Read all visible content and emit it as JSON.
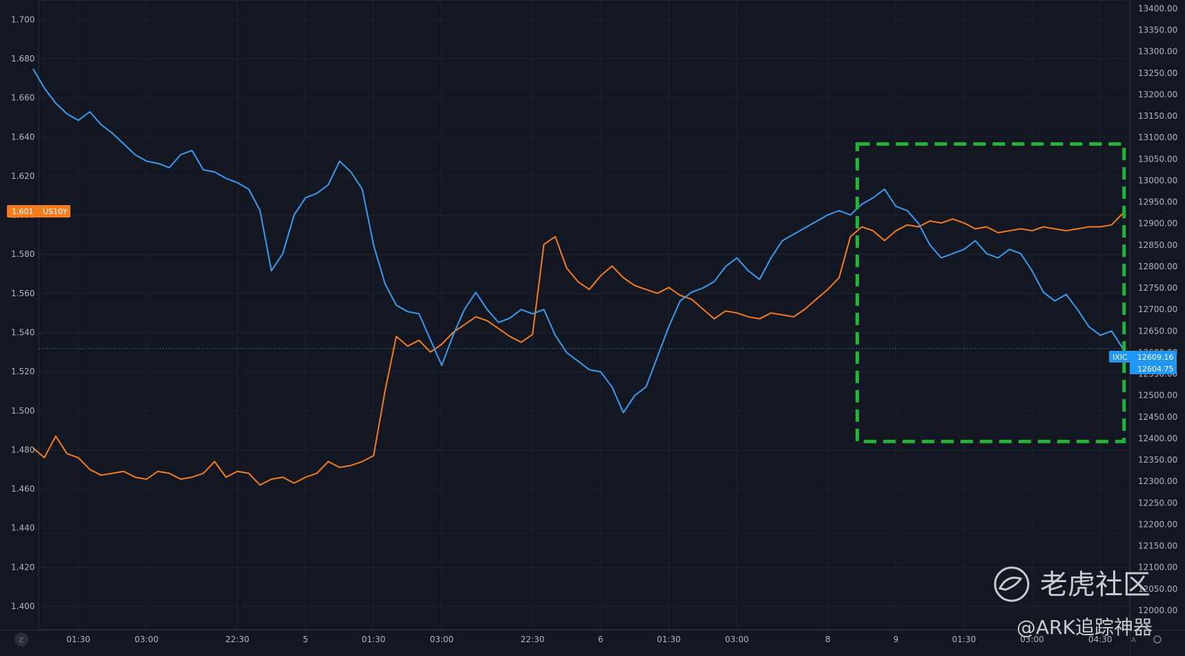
{
  "chart_data": {
    "type": "line",
    "left_axis": {
      "ylim": [
        1.388,
        1.71
      ],
      "ticks": [
        "1.700",
        "1.680",
        "1.660",
        "1.640",
        "1.620",
        "1.600",
        "1.580",
        "1.560",
        "1.540",
        "1.520",
        "1.500",
        "1.480",
        "1.460",
        "1.440",
        "1.420",
        "1.400"
      ]
    },
    "right_axis": {
      "ylim": [
        11955,
        13420
      ],
      "ticks": [
        "13400.00",
        "13350.00",
        "13300.00",
        "13250.00",
        "13200.00",
        "13150.00",
        "13100.00",
        "13050.00",
        "13000.00",
        "12950.00",
        "12900.00",
        "12850.00",
        "12800.00",
        "12750.00",
        "12700.00",
        "12650.00",
        "12600.00",
        "12550.00",
        "12500.00",
        "12450.00",
        "12400.00",
        "12350.00",
        "12300.00",
        "12250.00",
        "12200.00",
        "12150.00",
        "12100.00",
        "12050.00",
        "12000.00"
      ]
    },
    "x_axis": {
      "labels": [
        {
          "t": 4,
          "text": "01:30"
        },
        {
          "t": 10,
          "text": "03:00"
        },
        {
          "t": 18,
          "text": "22:30"
        },
        {
          "t": 24,
          "text": "5"
        },
        {
          "t": 30,
          "text": "01:30"
        },
        {
          "t": 36,
          "text": "03:00"
        },
        {
          "t": 44,
          "text": "22:30"
        },
        {
          "t": 50,
          "text": "6"
        },
        {
          "t": 56,
          "text": "01:30"
        },
        {
          "t": 62,
          "text": "03:00"
        },
        {
          "t": 70,
          "text": "8"
        },
        {
          "t": 76,
          "text": "9"
        },
        {
          "t": 82,
          "text": "01:30"
        },
        {
          "t": 88,
          "text": "03:00"
        },
        {
          "t": 94,
          "text": "04:30"
        }
      ],
      "range": [
        0.5,
        96.6
      ]
    },
    "series": [
      {
        "name": "US10Y",
        "axis": "left",
        "color": "#f57c1f",
        "last_value": "1.601",
        "points": [
          [
            0,
            1.481
          ],
          [
            1,
            1.476
          ],
          [
            2,
            1.487
          ],
          [
            3,
            1.478
          ],
          [
            4,
            1.476
          ],
          [
            5,
            1.47
          ],
          [
            6,
            1.467
          ],
          [
            7,
            1.468
          ],
          [
            8,
            1.469
          ],
          [
            9,
            1.466
          ],
          [
            10,
            1.465
          ],
          [
            11,
            1.469
          ],
          [
            12,
            1.468
          ],
          [
            13,
            1.465
          ],
          [
            14,
            1.466
          ],
          [
            15,
            1.468
          ],
          [
            16,
            1.474
          ],
          [
            17,
            1.466
          ],
          [
            18,
            1.469
          ],
          [
            19,
            1.468
          ],
          [
            20,
            1.462
          ],
          [
            21,
            1.465
          ],
          [
            22,
            1.466
          ],
          [
            23,
            1.463
          ],
          [
            24,
            1.466
          ],
          [
            25,
            1.468
          ],
          [
            26,
            1.474
          ],
          [
            27,
            1.471
          ],
          [
            28,
            1.472
          ],
          [
            29,
            1.474
          ],
          [
            30,
            1.477
          ],
          [
            31,
            1.51
          ],
          [
            32,
            1.538
          ],
          [
            33,
            1.533
          ],
          [
            34,
            1.536
          ],
          [
            35,
            1.53
          ],
          [
            36,
            1.534
          ],
          [
            37,
            1.54
          ],
          [
            38,
            1.544
          ],
          [
            39,
            1.548
          ],
          [
            40,
            1.546
          ],
          [
            41,
            1.542
          ],
          [
            42,
            1.538
          ],
          [
            43,
            1.535
          ],
          [
            44,
            1.539
          ],
          [
            45,
            1.585
          ],
          [
            46,
            1.589
          ],
          [
            47,
            1.573
          ],
          [
            48,
            1.566
          ],
          [
            49,
            1.562
          ],
          [
            50,
            1.569
          ],
          [
            51,
            1.574
          ],
          [
            52,
            1.568
          ],
          [
            53,
            1.564
          ],
          [
            54,
            1.562
          ],
          [
            55,
            1.56
          ],
          [
            56,
            1.563
          ],
          [
            57,
            1.559
          ],
          [
            58,
            1.557
          ],
          [
            59,
            1.552
          ],
          [
            60,
            1.547
          ],
          [
            61,
            1.551
          ],
          [
            62,
            1.55
          ],
          [
            63,
            1.548
          ],
          [
            64,
            1.547
          ],
          [
            65,
            1.55
          ],
          [
            66,
            1.549
          ],
          [
            67,
            1.548
          ],
          [
            68,
            1.552
          ],
          [
            69,
            1.557
          ],
          [
            70,
            1.562
          ],
          [
            71,
            1.568
          ],
          [
            72,
            1.589
          ],
          [
            73,
            1.594
          ],
          [
            74,
            1.592
          ],
          [
            75,
            1.587
          ],
          [
            76,
            1.592
          ],
          [
            77,
            1.595
          ],
          [
            78,
            1.594
          ],
          [
            79,
            1.597
          ],
          [
            80,
            1.596
          ],
          [
            81,
            1.598
          ],
          [
            82,
            1.596
          ],
          [
            83,
            1.593
          ],
          [
            84,
            1.594
          ],
          [
            85,
            1.591
          ],
          [
            86,
            1.592
          ],
          [
            87,
            1.593
          ],
          [
            88,
            1.592
          ],
          [
            89,
            1.594
          ],
          [
            90,
            1.593
          ],
          [
            91,
            1.592
          ],
          [
            92,
            1.593
          ],
          [
            93,
            1.594
          ],
          [
            94,
            1.594
          ],
          [
            95,
            1.595
          ],
          [
            96,
            1.601
          ]
        ]
      },
      {
        "name": "IXIC",
        "axis": "right",
        "color": "#3a9bf0",
        "last_value": "12609.16",
        "points": [
          [
            0,
            13260
          ],
          [
            1,
            13215
          ],
          [
            2,
            13180
          ],
          [
            3,
            13155
          ],
          [
            4,
            13140
          ],
          [
            5,
            13160
          ],
          [
            6,
            13130
          ],
          [
            7,
            13110
          ],
          [
            8,
            13085
          ],
          [
            9,
            13060
          ],
          [
            10,
            13045
          ],
          [
            11,
            13040
          ],
          [
            12,
            13030
          ],
          [
            13,
            13060
          ],
          [
            14,
            13070
          ],
          [
            15,
            13025
          ],
          [
            16,
            13020
          ],
          [
            17,
            13005
          ],
          [
            18,
            12995
          ],
          [
            19,
            12980
          ],
          [
            20,
            12930
          ],
          [
            21,
            12790
          ],
          [
            22,
            12830
          ],
          [
            23,
            12920
          ],
          [
            24,
            12960
          ],
          [
            25,
            12970
          ],
          [
            26,
            12990
          ],
          [
            27,
            13045
          ],
          [
            28,
            13020
          ],
          [
            29,
            12980
          ],
          [
            30,
            12850
          ],
          [
            31,
            12760
          ],
          [
            32,
            12710
          ],
          [
            33,
            12695
          ],
          [
            34,
            12690
          ],
          [
            35,
            12630
          ],
          [
            36,
            12570
          ],
          [
            37,
            12640
          ],
          [
            38,
            12700
          ],
          [
            39,
            12740
          ],
          [
            40,
            12700
          ],
          [
            41,
            12670
          ],
          [
            42,
            12680
          ],
          [
            43,
            12700
          ],
          [
            44,
            12690
          ],
          [
            45,
            12700
          ],
          [
            46,
            12640
          ],
          [
            47,
            12600
          ],
          [
            48,
            12580
          ],
          [
            49,
            12560
          ],
          [
            50,
            12555
          ],
          [
            51,
            12520
          ],
          [
            52,
            12460
          ],
          [
            53,
            12500
          ],
          [
            54,
            12520
          ],
          [
            55,
            12590
          ],
          [
            56,
            12660
          ],
          [
            57,
            12720
          ],
          [
            58,
            12740
          ],
          [
            59,
            12750
          ],
          [
            60,
            12765
          ],
          [
            61,
            12800
          ],
          [
            62,
            12820
          ],
          [
            63,
            12790
          ],
          [
            64,
            12770
          ],
          [
            65,
            12820
          ],
          [
            66,
            12860
          ],
          [
            67,
            12875
          ],
          [
            68,
            12890
          ],
          [
            69,
            12905
          ],
          [
            70,
            12920
          ],
          [
            71,
            12930
          ],
          [
            72,
            12920
          ],
          [
            73,
            12945
          ],
          [
            74,
            12960
          ],
          [
            75,
            12980
          ],
          [
            76,
            12940
          ],
          [
            77,
            12930
          ],
          [
            78,
            12900
          ],
          [
            79,
            12850
          ],
          [
            80,
            12820
          ],
          [
            81,
            12830
          ],
          [
            82,
            12840
          ],
          [
            83,
            12860
          ],
          [
            84,
            12830
          ],
          [
            85,
            12820
          ],
          [
            86,
            12840
          ],
          [
            87,
            12830
          ],
          [
            88,
            12790
          ],
          [
            89,
            12740
          ],
          [
            90,
            12720
          ],
          [
            91,
            12735
          ],
          [
            92,
            12700
          ],
          [
            93,
            12660
          ],
          [
            94,
            12640
          ],
          [
            95,
            12650
          ],
          [
            96,
            12609
          ]
        ]
      }
    ],
    "price_labels": {
      "left_value": "1.601",
      "left_name": "US10Y",
      "right_name": "IXIC",
      "right_value1": "12609.16",
      "right_value2": "12604.75"
    },
    "highlight_box": {
      "x_range": [
        72.6,
        96.1
      ],
      "y_range": [
        12393,
        13085
      ],
      "color": "#22b33a"
    },
    "grid": true,
    "watermark": {
      "line1": "老虎社区",
      "line2": "@ARK追踪神器"
    },
    "corner_labels": {
      "z": "Z",
      "a": "A"
    }
  }
}
